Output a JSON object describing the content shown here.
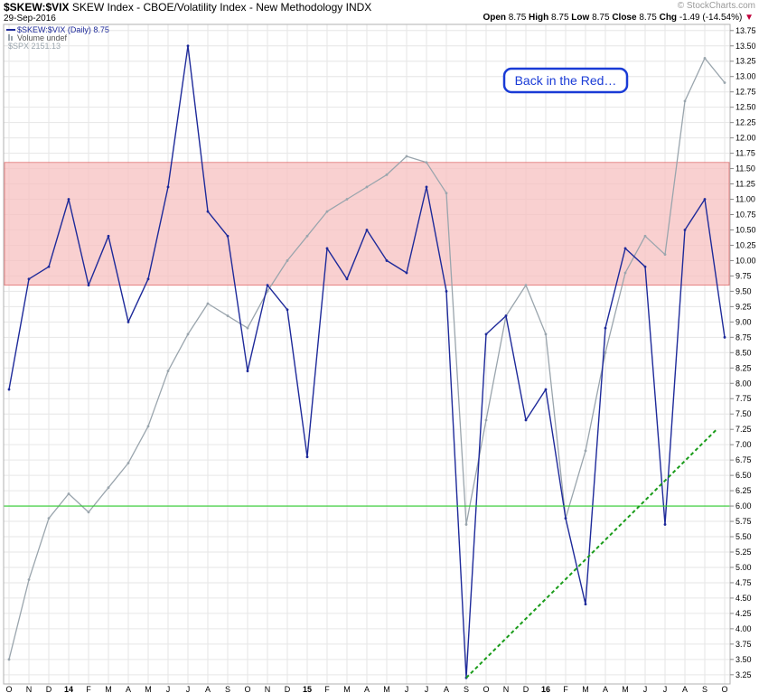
{
  "header": {
    "symbol": "$SKEW:$VIX",
    "description": "SKEW Index - CBOE/Volatility Index - New Methodology",
    "exchange": "INDX",
    "date": "29-Sep-2016",
    "open_label": "Open",
    "open": "8.75",
    "high_label": "High",
    "high": "8.75",
    "low_label": "Low",
    "low": "8.75",
    "close_label": "Close",
    "close": "8.75",
    "chg_label": "Chg",
    "chg": "-1.49 (-14.54%)",
    "chg_marker": "▼",
    "brand": "© StockCharts.com"
  },
  "colors": {
    "ratio": "#1e2a9a",
    "spx": "#9aa5ad",
    "band": "#f7c0c0",
    "band_edge": "#e07070",
    "support": "#2ecc2e",
    "trend": "#1a9c1a",
    "callout": "#1a3bd6"
  },
  "chart_data": {
    "type": "line",
    "title": "$SKEW:$VIX",
    "xlabel": "",
    "ylabel": "",
    "legend": {
      "position": "top-left",
      "entries": [
        "$SKEW:$VIX (Daily) 8.75",
        "Volume undef",
        "$SPX 2151.13"
      ]
    },
    "ylim": [
      3.1,
      13.85
    ],
    "y_ticks": [
      "13.75",
      "13.50",
      "13.25",
      "13.00",
      "12.75",
      "12.50",
      "12.25",
      "12.00",
      "11.75",
      "11.50",
      "11.25",
      "11.00",
      "10.75",
      "10.50",
      "10.25",
      "10.00",
      "9.75",
      "9.50",
      "9.25",
      "9.00",
      "8.75",
      "8.50",
      "8.25",
      "8.00",
      "7.75",
      "7.50",
      "7.25",
      "7.00",
      "6.75",
      "6.50",
      "6.25",
      "6.00",
      "5.75",
      "5.50",
      "5.25",
      "5.00",
      "4.75",
      "4.50",
      "4.25",
      "4.00",
      "3.75",
      "3.50",
      "3.25"
    ],
    "x_ticks": [
      "O",
      "N",
      "D",
      "14",
      "F",
      "M",
      "A",
      "M",
      "J",
      "J",
      "A",
      "S",
      "O",
      "N",
      "D",
      "15",
      "F",
      "M",
      "A",
      "M",
      "J",
      "J",
      "A",
      "S",
      "O",
      "N",
      "D",
      "16",
      "F",
      "M",
      "A",
      "M",
      "J",
      "J",
      "A",
      "S",
      "O"
    ],
    "x_year_ticks": [
      "14",
      "15",
      "16"
    ],
    "x_range": [
      "2013-10",
      "2016-10"
    ],
    "grid": true,
    "series": [
      {
        "name": "$SKEW:$VIX (Daily) 8.75",
        "x": [
          0,
          1,
          2,
          3,
          4,
          5,
          6,
          7,
          8,
          9,
          10,
          11,
          12,
          13,
          14,
          15,
          16,
          17,
          18,
          19,
          20,
          21,
          22,
          23,
          24,
          25,
          26,
          27,
          28,
          29,
          30,
          31,
          32,
          33,
          34,
          35,
          36
        ],
        "values": [
          7.9,
          9.7,
          9.9,
          11.0,
          9.6,
          10.4,
          9.0,
          9.7,
          11.2,
          13.5,
          10.8,
          10.4,
          8.2,
          9.6,
          9.2,
          6.8,
          10.2,
          9.7,
          10.5,
          10.0,
          9.8,
          11.2,
          9.5,
          3.2,
          8.8,
          9.1,
          7.4,
          7.9,
          5.8,
          4.4,
          8.9,
          10.2,
          9.9,
          5.7,
          10.5,
          11.0,
          8.75
        ]
      },
      {
        "name": "$SPX 2151.13",
        "x": [
          0,
          1,
          2,
          3,
          4,
          5,
          6,
          7,
          8,
          9,
          10,
          11,
          12,
          13,
          14,
          15,
          16,
          17,
          18,
          19,
          20,
          21,
          22,
          23,
          24,
          25,
          26,
          27,
          28,
          29,
          30,
          31,
          32,
          33,
          34,
          35,
          36
        ],
        "values": [
          3.5,
          4.8,
          5.8,
          6.2,
          5.9,
          6.3,
          6.7,
          7.3,
          8.2,
          8.8,
          9.3,
          9.1,
          8.9,
          9.5,
          10.0,
          10.4,
          10.8,
          11.0,
          11.2,
          11.4,
          11.7,
          11.6,
          11.1,
          5.7,
          7.4,
          9.1,
          9.6,
          8.8,
          5.8,
          6.9,
          8.5,
          9.8,
          10.4,
          10.1,
          12.6,
          13.3,
          12.9
        ]
      }
    ],
    "annotations": {
      "band": [
        9.6,
        11.6
      ],
      "support_level": 6.0,
      "trendline_from": [
        23,
        3.2
      ],
      "trendline_to": [
        35.6,
        7.25
      ],
      "callout": "Back in the Red…"
    }
  }
}
